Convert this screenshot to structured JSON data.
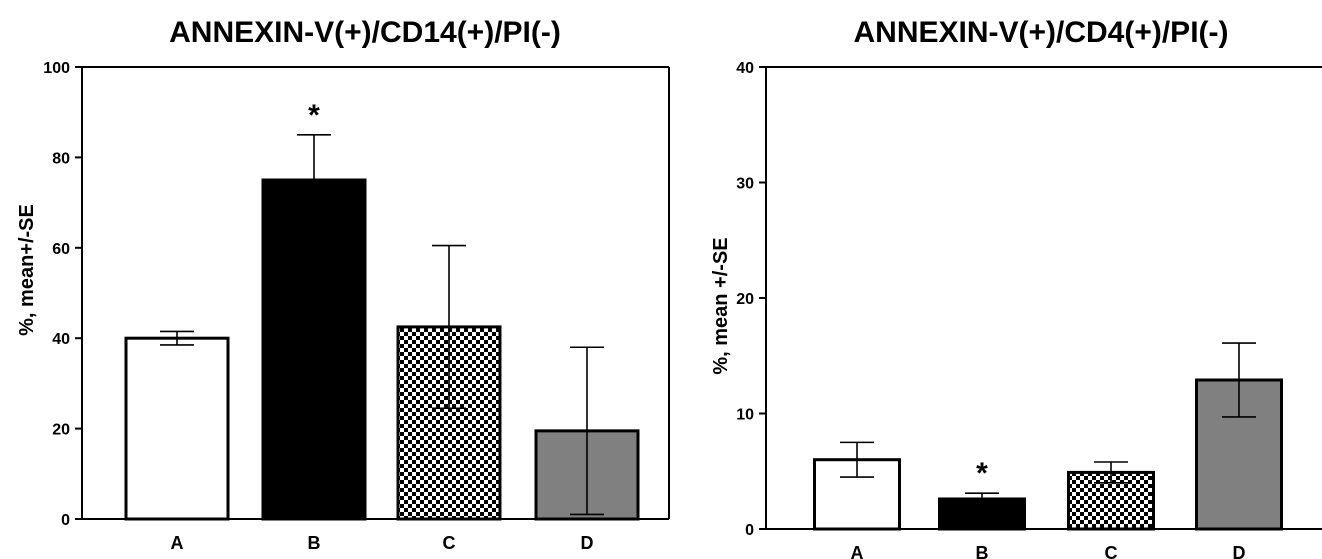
{
  "chart_data": [
    {
      "type": "bar",
      "title": "ANNEXIN-V(+)/CD14(+)/PI(-)",
      "ylabel": "%, mean+/-SE",
      "xlabel": "",
      "categories": [
        "A",
        "B",
        "C",
        "D"
      ],
      "values": [
        40,
        75,
        42.5,
        19.5
      ],
      "errors": [
        1.5,
        10,
        18,
        18.5
      ],
      "error_style": "two-sided",
      "ylim": [
        0,
        100
      ],
      "yticks": [
        0,
        20,
        40,
        60,
        80,
        100
      ],
      "bar_fills": [
        "white",
        "black",
        "checker",
        "gray"
      ],
      "annotations": [
        {
          "category": "B",
          "text": "*"
        }
      ],
      "grid": false,
      "legend": "none"
    },
    {
      "type": "bar",
      "title": "ANNEXIN-V(+)/CD4(+)/PI(-)",
      "ylabel": "%, mean +/-SE",
      "xlabel": "",
      "categories": [
        "A",
        "B",
        "C",
        "D"
      ],
      "values": [
        6,
        2.6,
        4.9,
        12.9
      ],
      "errors": [
        1.5,
        0.5,
        0.9,
        3.2
      ],
      "error_style": "two-sided",
      "ylim": [
        0,
        40
      ],
      "yticks": [
        0,
        10,
        20,
        30,
        40
      ],
      "bar_fills": [
        "white",
        "black",
        "checker",
        "gray"
      ],
      "annotations": [
        {
          "category": "B",
          "text": "*"
        }
      ],
      "grid": false,
      "legend": "none"
    }
  ],
  "colors": {
    "bar_white": "#ffffff",
    "bar_black": "#000000",
    "bar_gray": "#808080",
    "checker_dark": "#000000",
    "checker_light": "#ffffff",
    "axis": "#000000"
  }
}
